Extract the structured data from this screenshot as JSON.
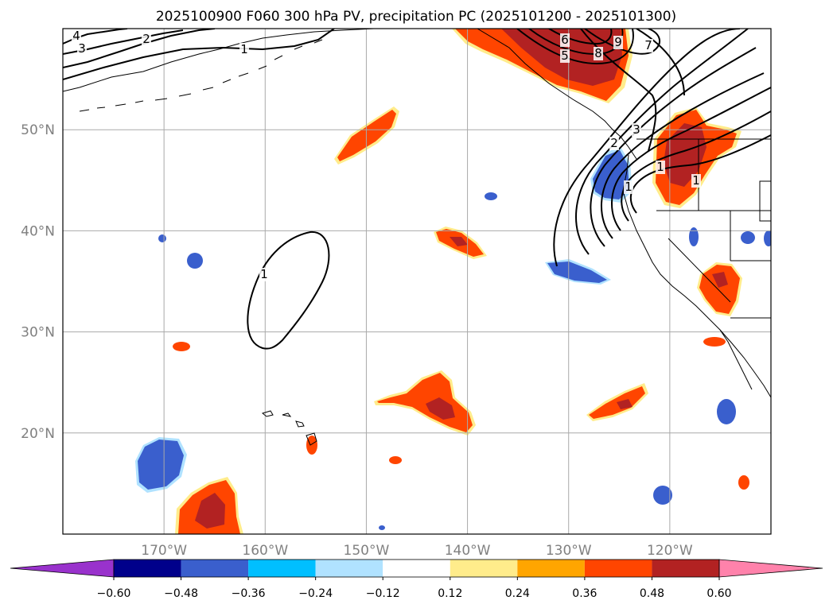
{
  "chart_data": {
    "type": "heatmap",
    "title": "2025100900 F060 300 hPa PV, precipitation PC (2025101200 - 2025101300)",
    "map": {
      "lon_range": [
        -180,
        -110
      ],
      "lat_range": [
        10,
        60
      ],
      "lat_ticks": [
        {
          "value": 50,
          "label": "50°N"
        },
        {
          "value": 40,
          "label": "40°N"
        },
        {
          "value": 30,
          "label": "30°N"
        },
        {
          "value": 20,
          "label": "20°N"
        }
      ],
      "lon_ticks": [
        {
          "value": -170,
          "label": "170°W"
        },
        {
          "value": -160,
          "label": "160°W"
        },
        {
          "value": -150,
          "label": "150°W"
        },
        {
          "value": -140,
          "label": "140°W"
        },
        {
          "value": -130,
          "label": "130°W"
        },
        {
          "value": -120,
          "label": "120°W"
        }
      ],
      "grid": true
    },
    "colorbar": {
      "colors": [
        "#9932cc",
        "#00008b",
        "#3a5fcd",
        "#00bfff",
        "#b0e2ff",
        "#ffffff",
        "#ffec8b",
        "#ffa500",
        "#ff4500",
        "#b22222",
        "#ff82ab"
      ],
      "levels": [
        -0.6,
        -0.48,
        -0.36,
        -0.24,
        -0.12,
        0.12,
        0.24,
        0.36,
        0.48,
        0.6
      ],
      "tick_labels": [
        "−0.60",
        "−0.48",
        "−0.36",
        "−0.24",
        "−0.12",
        "0.12",
        "0.24",
        "0.36",
        "0.48",
        "0.60"
      ],
      "extend": "both"
    },
    "pv_contour_labels": [
      "4",
      "3",
      "2",
      "1",
      "1",
      "9",
      "8",
      "7",
      "6",
      "5",
      "3",
      "2",
      "1",
      "1",
      "1"
    ],
    "precip_regions": [
      {
        "name": "alaska-gulf-positive",
        "category": "0.48",
        "lon": -138,
        "lat": 57
      },
      {
        "name": "north-pacific-positive",
        "category": "0.36",
        "lon": -151,
        "lat": 49
      },
      {
        "name": "pacific-nw-positive",
        "category": "0.48",
        "lon": -120,
        "lat": 47
      },
      {
        "name": "nw-coast-negative",
        "category": "-0.36",
        "lon": -125,
        "lat": 45
      },
      {
        "name": "subtropical-positive-40n",
        "category": "0.48",
        "lon": -141,
        "lat": 39
      },
      {
        "name": "california-positive",
        "category": "0.48",
        "lon": -116,
        "lat": 34
      },
      {
        "name": "offshore-negative-35n",
        "category": "-0.36",
        "lon": -128,
        "lat": 35
      },
      {
        "name": "hawaii-ne-positive",
        "category": "0.48",
        "lon": -143,
        "lat": 23
      },
      {
        "name": "eastern-tropical-positive",
        "category": "0.36",
        "lon": -127,
        "lat": 22
      },
      {
        "name": "southwest-negative",
        "category": "-0.36",
        "lon": -171,
        "lat": 17
      },
      {
        "name": "southwest-positive",
        "category": "0.48",
        "lon": -165,
        "lat": 13
      }
    ]
  }
}
